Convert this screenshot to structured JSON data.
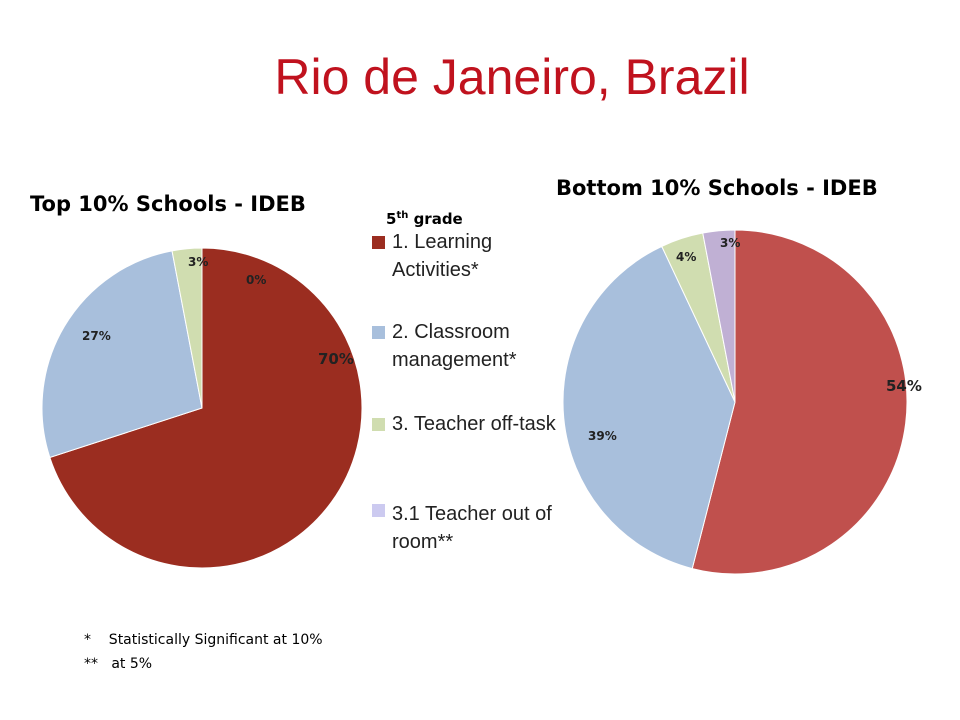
{
  "slide": {
    "title": "Rio de Janeiro, Brazil",
    "grade_label": "5",
    "grade_sup": "th",
    "grade_suffix": " grade",
    "footnotes": [
      "*    Statistically Significant at 10%",
      "**   at 5%"
    ]
  },
  "legend": [
    {
      "label": "1. Learning\nActivities*",
      "color": "#9b2d20"
    },
    {
      "label": "2. Classroom\nmanagement*",
      "color": "#a8bfdc"
    },
    {
      "label": "3. Teacher off-task",
      "color": "#d0ddb0"
    },
    {
      "label": "3.1 Teacher out of\nroom**",
      "color": "#cccaf0"
    }
  ],
  "chart_data": [
    {
      "type": "pie",
      "title": "Top 10% Schools - IDEB",
      "categories": [
        "1. Learning Activities*",
        "2. Classroom management*",
        "3. Teacher off-task",
        "3.1 Teacher out of room**"
      ],
      "values": [
        70,
        27,
        3,
        0
      ],
      "data_labels": [
        "70%",
        "27%",
        "3%",
        "0%"
      ],
      "colors": [
        "#9b2d20",
        "#a8bfdc",
        "#d0ddb0",
        "#c0b0d0"
      ]
    },
    {
      "type": "pie",
      "title": "Bottom 10% Schools - IDEB",
      "categories": [
        "1. Learning Activities*",
        "2. Classroom management*",
        "3. Teacher off-task",
        "3.1 Teacher out of room**"
      ],
      "values": [
        54,
        39,
        4,
        3
      ],
      "data_labels": [
        "54%",
        "39%",
        "4%",
        "3%"
      ],
      "colors": [
        "#c0504d",
        "#a8bfdc",
        "#d0ddb0",
        "#c0b0d4"
      ]
    }
  ]
}
